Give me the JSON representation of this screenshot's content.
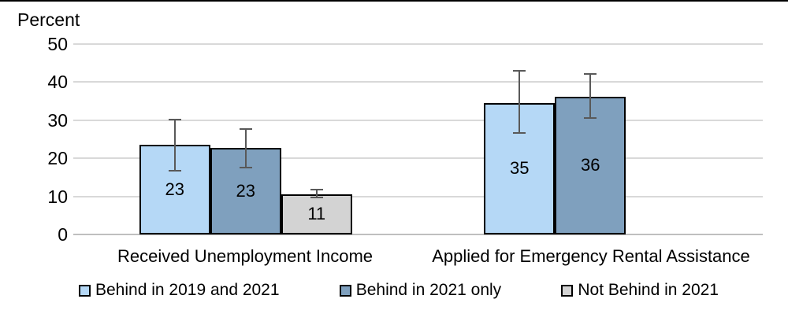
{
  "chart_data": {
    "type": "bar",
    "title": "Percent",
    "ylabel": "Percent",
    "categories": [
      "Received Unemployment Income",
      "Applied for Emergency Rental Assistance"
    ],
    "series": [
      {
        "name": "Behind in 2019 and 2021",
        "color": "#B5D8F6",
        "values": [
          23.5,
          34.6
        ],
        "labels": [
          "23",
          "35"
        ],
        "err_lo": [
          16.5,
          26.4
        ],
        "err_hi": [
          30.4,
          43.1
        ]
      },
      {
        "name": "Behind in 2021 only",
        "color": "#7FA0BE",
        "values": [
          22.7,
          36.2
        ],
        "labels": [
          "23",
          "36"
        ],
        "err_lo": [
          17.3,
          30.3
        ],
        "err_hi": [
          27.8,
          42.3
        ]
      },
      {
        "name": "Not Behind in 2021",
        "color": "#D3D3D3",
        "values": [
          10.6,
          null
        ],
        "labels": [
          "11",
          null
        ],
        "err_lo": [
          9.4,
          null
        ],
        "err_hi": [
          11.9,
          null
        ]
      }
    ],
    "ylim": [
      0,
      50
    ],
    "yticks": [
      0,
      10,
      20,
      30,
      40,
      50
    ],
    "grid": true,
    "legend_position": "bottom",
    "gridline_color": "#D9D9D9",
    "axis_line_color": "#BFBFBF",
    "bar_border_color": "#000000",
    "error_bar_color": "#595959"
  }
}
